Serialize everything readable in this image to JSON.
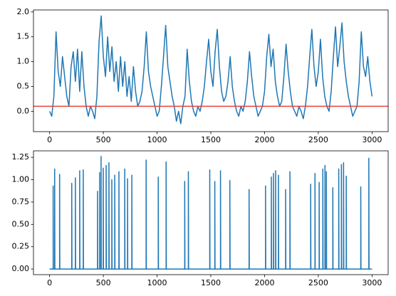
{
  "chart_data": [
    {
      "type": "line",
      "series": [
        {
          "color": "#1f77b4",
          "x": [
            0,
            20,
            40,
            60,
            80,
            100,
            120,
            140,
            160,
            180,
            200,
            220,
            240,
            260,
            280,
            300,
            320,
            340,
            360,
            380,
            400,
            420,
            440,
            460,
            480,
            500,
            520,
            540,
            560,
            580,
            600,
            620,
            640,
            660,
            680,
            700,
            720,
            740,
            760,
            780,
            800,
            820,
            840,
            860,
            880,
            900,
            920,
            940,
            960,
            980,
            1000,
            1020,
            1040,
            1060,
            1080,
            1100,
            1120,
            1140,
            1160,
            1180,
            1200,
            1220,
            1240,
            1260,
            1280,
            1300,
            1320,
            1340,
            1360,
            1380,
            1400,
            1420,
            1440,
            1460,
            1480,
            1500,
            1520,
            1540,
            1560,
            1580,
            1600,
            1620,
            1640,
            1660,
            1680,
            1700,
            1720,
            1740,
            1760,
            1780,
            1800,
            1820,
            1840,
            1860,
            1880,
            1900,
            1920,
            1940,
            1960,
            1980,
            2000,
            2020,
            2040,
            2060,
            2080,
            2100,
            2120,
            2140,
            2160,
            2180,
            2200,
            2220,
            2240,
            2260,
            2280,
            2300,
            2320,
            2340,
            2360,
            2380,
            2400,
            2420,
            2440,
            2460,
            2480,
            2500,
            2520,
            2540,
            2560,
            2580,
            2600,
            2620,
            2640,
            2660,
            2680,
            2700,
            2720,
            2740,
            2760,
            2780,
            2800,
            2820,
            2840,
            2860,
            2880,
            2900,
            2920,
            2940,
            2960,
            2980,
            3000
          ],
          "values": [
            0.0,
            -0.1,
            0.3,
            1.6,
            0.8,
            0.5,
            1.1,
            0.7,
            0.3,
            0.1,
            0.9,
            1.2,
            0.6,
            1.25,
            0.4,
            1.2,
            0.5,
            0.1,
            -0.1,
            0.1,
            0.0,
            -0.15,
            0.3,
            1.4,
            1.92,
            1.1,
            0.7,
            1.5,
            0.8,
            1.3,
            0.6,
            1.0,
            0.4,
            1.1,
            0.5,
            1.0,
            0.3,
            0.7,
            0.2,
            0.9,
            0.4,
            0.1,
            0.2,
            0.4,
            0.9,
            1.6,
            0.8,
            0.5,
            0.3,
            0.1,
            -0.1,
            0.0,
            0.5,
            1.1,
            1.73,
            0.9,
            0.6,
            0.3,
            0.1,
            -0.2,
            0.0,
            -0.25,
            0.1,
            0.3,
            1.25,
            0.6,
            0.2,
            0.0,
            -0.1,
            0.1,
            0.0,
            0.2,
            0.5,
            1.0,
            1.45,
            0.8,
            0.5,
            1.2,
            1.65,
            0.9,
            0.4,
            0.2,
            0.3,
            0.6,
            1.1,
            0.5,
            0.2,
            0.0,
            -0.1,
            0.1,
            0.0,
            0.2,
            0.6,
            1.2,
            0.7,
            0.3,
            0.1,
            -0.1,
            0.0,
            0.1,
            0.4,
            1.1,
            1.55,
            0.9,
            1.25,
            0.6,
            0.3,
            0.1,
            0.2,
            0.7,
            1.35,
            0.8,
            0.4,
            0.1,
            0.0,
            -0.1,
            0.1,
            0.0,
            -0.15,
            0.1,
            0.5,
            1.1,
            1.65,
            0.9,
            0.5,
            0.8,
            1.45,
            0.7,
            0.3,
            0.1,
            0.0,
            0.4,
            1.1,
            1.7,
            0.9,
            1.3,
            1.78,
            1.0,
            0.6,
            0.3,
            0.1,
            -0.1,
            0.0,
            0.1,
            0.6,
            1.6,
            0.9,
            0.7,
            1.1,
            0.6,
            0.3
          ]
        }
      ],
      "hlines": [
        {
          "value": 0.1,
          "color": "#e8413c"
        }
      ],
      "xlim": [
        -150,
        3150
      ],
      "xticks": [
        0,
        500,
        1000,
        1500,
        2000,
        2500,
        3000
      ],
      "ylim": [
        -0.41,
        2.04
      ],
      "yticks": [
        {
          "value": 0.0,
          "label": "0.0"
        },
        {
          "value": 0.5,
          "label": "0.5"
        },
        {
          "value": 1.0,
          "label": "1.0"
        },
        {
          "value": 1.5,
          "label": "1.5"
        },
        {
          "value": 2.0,
          "label": "2.0"
        }
      ]
    },
    {
      "type": "line",
      "series": [
        {
          "color": "#1f77b4",
          "x": [
            0,
            33,
            33,
            35,
            47,
            47,
            49,
            93,
            93,
            95,
            206,
            206,
            208,
            240,
            240,
            242,
            280,
            280,
            282,
            313,
            313,
            315,
            446,
            446,
            448,
            466,
            466,
            468,
            479,
            479,
            481,
            499,
            499,
            501,
            526,
            526,
            528,
            552,
            552,
            554,
            579,
            579,
            581,
            606,
            606,
            608,
            645,
            645,
            647,
            699,
            699,
            701,
            725,
            725,
            727,
            765,
            765,
            767,
            898,
            898,
            900,
            1011,
            1011,
            1013,
            1084,
            1084,
            1086,
            1257,
            1257,
            1259,
            1291,
            1291,
            1293,
            1490,
            1490,
            1492,
            1537,
            1537,
            1539,
            1590,
            1590,
            1592,
            1677,
            1677,
            1679,
            1856,
            1856,
            1858,
            2009,
            2009,
            2011,
            2063,
            2063,
            2065,
            2083,
            2083,
            2085,
            2103,
            2103,
            2105,
            2129,
            2129,
            2131,
            2196,
            2196,
            2198,
            2236,
            2236,
            2238,
            2429,
            2429,
            2431,
            2469,
            2469,
            2471,
            2508,
            2508,
            2510,
            2542,
            2542,
            2544,
            2562,
            2562,
            2564,
            2575,
            2575,
            2577,
            2635,
            2635,
            2637,
            2690,
            2690,
            2692,
            2715,
            2715,
            2717,
            2735,
            2735,
            2737,
            2760,
            2760,
            2762,
            2895,
            2895,
            2897,
            2970,
            2970,
            2972,
            3000
          ],
          "values": [
            0,
            0,
            0.93,
            0,
            0,
            1.12,
            0,
            0,
            1.06,
            0,
            0,
            0.96,
            0,
            0,
            1.02,
            0,
            0,
            1.1,
            0,
            0,
            1.11,
            0,
            0,
            0.87,
            0,
            0,
            1.08,
            0,
            0,
            1.26,
            0,
            0,
            1.13,
            0,
            0,
            1.16,
            0,
            0,
            1.19,
            0,
            0,
            1.0,
            0,
            0,
            1.05,
            0,
            0,
            1.09,
            0,
            0,
            1.12,
            0,
            0,
            1.01,
            0,
            0,
            1.05,
            0,
            0,
            1.22,
            0,
            0,
            1.03,
            0,
            0,
            1.2,
            0,
            0,
            0.98,
            0,
            0,
            1.09,
            0,
            0,
            1.11,
            0,
            0,
            0.98,
            0,
            0,
            1.1,
            0,
            0,
            0.99,
            0,
            0,
            0.89,
            0,
            0,
            0.93,
            0,
            0,
            1.03,
            0,
            0,
            1.07,
            0,
            0,
            1.1,
            0,
            0,
            1.05,
            0,
            0,
            0.89,
            0,
            0,
            1.09,
            0,
            0,
            0.95,
            0,
            0,
            1.07,
            0,
            0,
            0.97,
            0,
            0,
            1.12,
            0,
            0,
            1.16,
            0,
            0,
            1.09,
            0,
            0,
            0.91,
            0,
            0,
            1.12,
            0,
            0,
            1.17,
            0,
            0,
            1.19,
            0,
            0,
            1.04,
            0,
            0,
            0.92,
            0,
            0,
            1.24,
            0,
            0
          ]
        }
      ],
      "xlim": [
        -150,
        3150
      ],
      "xticks": [
        0,
        500,
        1000,
        1500,
        2000,
        2500,
        3000
      ],
      "ylim": [
        -0.063,
        1.323
      ],
      "yticks": [
        {
          "value": 0.0,
          "label": "0.00"
        },
        {
          "value": 0.25,
          "label": "0.25"
        },
        {
          "value": 0.5,
          "label": "0.50"
        },
        {
          "value": 0.75,
          "label": "0.75"
        },
        {
          "value": 1.0,
          "label": "1.00"
        },
        {
          "value": 1.25,
          "label": "1.25"
        }
      ]
    }
  ]
}
